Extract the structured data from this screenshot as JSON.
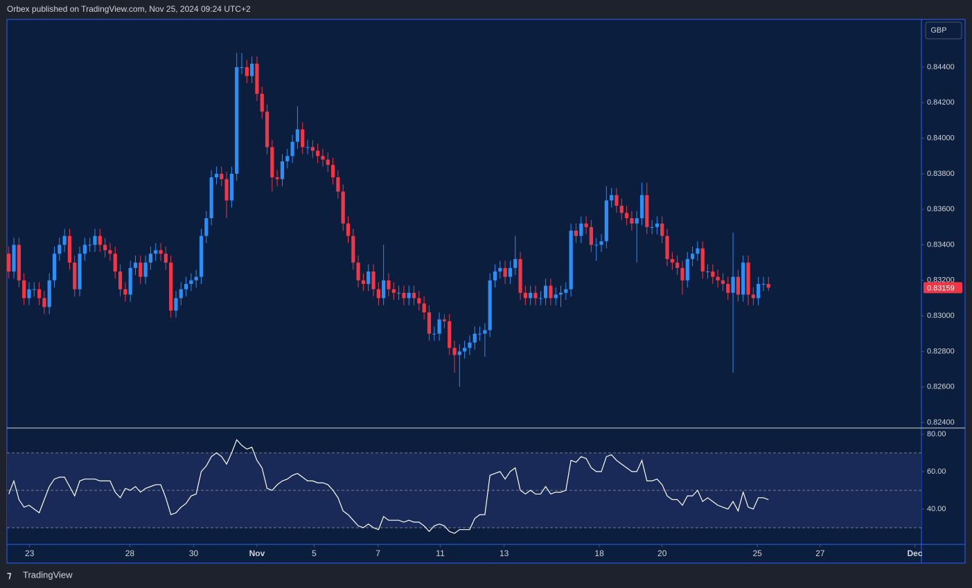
{
  "header": "Orbex published on TradingView.com, Nov 25, 2024 09:24 UTC+2",
  "currency": "GBP",
  "brand": "TradingView",
  "chart_data": [
    {
      "type": "candlestick",
      "up_color": "#2a8ff7",
      "down_color": "#f23645",
      "xlim": [
        -0.1,
        180.2
      ],
      "xticks": [
        {
          "value": 4.1,
          "label": "23"
        },
        {
          "value": 23.9,
          "label": "28"
        },
        {
          "value": 36.5,
          "label": "30"
        },
        {
          "value": 49,
          "label": "Nov"
        },
        {
          "value": 60.3,
          "label": "5"
        },
        {
          "value": 72.9,
          "label": "7"
        },
        {
          "value": 85.2,
          "label": "11"
        },
        {
          "value": 97.8,
          "label": "13"
        },
        {
          "value": 116.6,
          "label": "18"
        },
        {
          "value": 129,
          "label": "20"
        },
        {
          "value": 147.8,
          "label": "25"
        },
        {
          "value": 160.2,
          "label": "27"
        },
        {
          "value": 178.9,
          "label": "Dec"
        }
      ],
      "ylim": [
        0.82369,
        0.84669
      ],
      "yticks": [
        {
          "value": 0.824,
          "label": "0.82400"
        },
        {
          "value": 0.826,
          "label": "0.82600"
        },
        {
          "value": 0.828,
          "label": "0.82800"
        },
        {
          "value": 0.83,
          "label": "0.83000"
        },
        {
          "value": 0.832,
          "label": "0.83200"
        },
        {
          "value": 0.834,
          "label": "0.83400"
        },
        {
          "value": 0.836,
          "label": "0.83600"
        },
        {
          "value": 0.838,
          "label": "0.83800"
        },
        {
          "value": 0.84,
          "label": "0.84000"
        },
        {
          "value": 0.842,
          "label": "0.84200"
        },
        {
          "value": 0.844,
          "label": "0.84400"
        }
      ],
      "last_price": {
        "value": 0.83159,
        "label": "0.83159"
      },
      "open": [
        0.8335,
        0.8325,
        0.834,
        0.832,
        0.831,
        0.8315,
        0.8315,
        0.831,
        0.8305,
        0.832,
        0.8335,
        0.834,
        0.8345,
        0.833,
        0.8315,
        0.8335,
        0.834,
        0.834,
        0.8345,
        0.834,
        0.8337,
        0.8335,
        0.8325,
        0.8315,
        0.8312,
        0.8327,
        0.833,
        0.8322,
        0.833,
        0.8335,
        0.8337,
        0.8335,
        0.833,
        0.8303,
        0.831,
        0.8315,
        0.8318,
        0.832,
        0.8322,
        0.8345,
        0.8355,
        0.8378,
        0.838,
        0.8377,
        0.8365,
        0.838,
        0.844,
        0.844,
        0.8435,
        0.8442,
        0.8425,
        0.8415,
        0.8395,
        0.8378,
        0.8377,
        0.8387,
        0.839,
        0.8398,
        0.8405,
        0.8395,
        0.8395,
        0.8393,
        0.839,
        0.8388,
        0.8385,
        0.8378,
        0.837,
        0.8352,
        0.8345,
        0.833,
        0.832,
        0.8318,
        0.8325,
        0.8315,
        0.831,
        0.832,
        0.8315,
        0.8313,
        0.8313,
        0.831,
        0.8313,
        0.831,
        0.8307,
        0.8302,
        0.829,
        0.829,
        0.8298,
        0.8297,
        0.8282,
        0.8278,
        0.828,
        0.8282,
        0.8285,
        0.829,
        0.829,
        0.8292,
        0.832,
        0.8325,
        0.8327,
        0.8322,
        0.8327,
        0.8332,
        0.8313,
        0.831,
        0.8313,
        0.831,
        0.831,
        0.8317,
        0.831,
        0.8312,
        0.8313,
        0.8315,
        0.8348,
        0.8345,
        0.8352,
        0.835,
        0.834,
        0.834,
        0.8342,
        0.8365,
        0.8368,
        0.8362,
        0.8358,
        0.8355,
        0.8352,
        0.8355,
        0.8368,
        0.835,
        0.835,
        0.8352,
        0.8345,
        0.8332,
        0.833,
        0.8327,
        0.832,
        0.8332,
        0.8335,
        0.8338,
        0.8325,
        0.8325,
        0.8322,
        0.832,
        0.8318,
        0.8313,
        0.8322,
        0.8312,
        0.833,
        0.8312,
        0.831,
        0.8318,
        0.8318
      ],
      "high": [
        0.8339,
        0.8344,
        0.8344,
        0.8324,
        0.8319,
        0.8319,
        0.8319,
        0.8314,
        0.8324,
        0.8339,
        0.8344,
        0.8349,
        0.8349,
        0.8334,
        0.8339,
        0.8344,
        0.8344,
        0.8349,
        0.8349,
        0.8344,
        0.8341,
        0.8339,
        0.8329,
        0.8319,
        0.8331,
        0.8334,
        0.8334,
        0.8334,
        0.8339,
        0.8341,
        0.8341,
        0.8339,
        0.8334,
        0.8314,
        0.8319,
        0.8322,
        0.8324,
        0.8326,
        0.8349,
        0.8359,
        0.8382,
        0.8384,
        0.8384,
        0.8381,
        0.8384,
        0.8448,
        0.8448,
        0.8444,
        0.8446,
        0.8446,
        0.8429,
        0.8419,
        0.8399,
        0.8382,
        0.8391,
        0.8394,
        0.8402,
        0.8418,
        0.8409,
        0.8399,
        0.8399,
        0.8397,
        0.8394,
        0.8392,
        0.8389,
        0.8382,
        0.8374,
        0.8356,
        0.8349,
        0.8334,
        0.8324,
        0.8329,
        0.8329,
        0.8319,
        0.834,
        0.8324,
        0.8319,
        0.8317,
        0.8317,
        0.8317,
        0.8317,
        0.8314,
        0.8311,
        0.8306,
        0.8294,
        0.8302,
        0.8301,
        0.8301,
        0.8286,
        0.8284,
        0.8286,
        0.8289,
        0.8294,
        0.8294,
        0.8296,
        0.8324,
        0.8329,
        0.8331,
        0.8331,
        0.8331,
        0.8345,
        0.8336,
        0.8317,
        0.8317,
        0.8317,
        0.8314,
        0.8321,
        0.8321,
        0.8316,
        0.8317,
        0.8319,
        0.8352,
        0.8352,
        0.8356,
        0.8356,
        0.8354,
        0.8344,
        0.8346,
        0.8373,
        0.8372,
        0.8372,
        0.8366,
        0.8362,
        0.8359,
        0.8359,
        0.8375,
        0.8375,
        0.8354,
        0.8356,
        0.8356,
        0.8349,
        0.8336,
        0.8334,
        0.8331,
        0.8336,
        0.8339,
        0.8342,
        0.8342,
        0.8329,
        0.8329,
        0.8326,
        0.8324,
        0.8322,
        0.8347,
        0.8326,
        0.8334,
        0.8334,
        0.8316,
        0.8322,
        0.8322,
        0.8322
      ],
      "low": [
        0.8321,
        0.8321,
        0.8316,
        0.8306,
        0.8306,
        0.8311,
        0.8306,
        0.8301,
        0.8301,
        0.8316,
        0.8331,
        0.8336,
        0.8326,
        0.8311,
        0.8311,
        0.8331,
        0.8336,
        0.8336,
        0.8336,
        0.8333,
        0.8331,
        0.8321,
        0.8311,
        0.8308,
        0.8308,
        0.8323,
        0.8318,
        0.8318,
        0.8326,
        0.8331,
        0.8331,
        0.8326,
        0.8299,
        0.8299,
        0.8306,
        0.8311,
        0.8314,
        0.8316,
        0.8318,
        0.8341,
        0.8351,
        0.8374,
        0.8373,
        0.8355,
        0.8361,
        0.8376,
        0.8436,
        0.8431,
        0.8431,
        0.8421,
        0.8411,
        0.8391,
        0.837,
        0.8373,
        0.8373,
        0.8383,
        0.8386,
        0.8394,
        0.8391,
        0.8391,
        0.8389,
        0.8386,
        0.8384,
        0.8381,
        0.8374,
        0.8366,
        0.8348,
        0.8341,
        0.8326,
        0.8316,
        0.8314,
        0.8314,
        0.8311,
        0.8306,
        0.8306,
        0.8311,
        0.8309,
        0.8309,
        0.8306,
        0.8306,
        0.8306,
        0.8303,
        0.8298,
        0.8286,
        0.8286,
        0.8286,
        0.8293,
        0.8278,
        0.8268,
        0.826,
        0.8276,
        0.8278,
        0.8281,
        0.8286,
        0.8277,
        0.8288,
        0.8316,
        0.8321,
        0.8318,
        0.8318,
        0.8323,
        0.8309,
        0.8306,
        0.8306,
        0.8306,
        0.8306,
        0.8306,
        0.8306,
        0.8306,
        0.8305,
        0.8309,
        0.8311,
        0.8341,
        0.8341,
        0.8346,
        0.8336,
        0.8331,
        0.8336,
        0.8338,
        0.8361,
        0.8358,
        0.8354,
        0.8351,
        0.8348,
        0.833,
        0.8351,
        0.8346,
        0.8346,
        0.8346,
        0.8341,
        0.8328,
        0.8326,
        0.8323,
        0.8312,
        0.8316,
        0.8328,
        0.8331,
        0.8321,
        0.8321,
        0.8318,
        0.8316,
        0.8314,
        0.8309,
        0.8268,
        0.8308,
        0.8308,
        0.8306,
        0.8306,
        0.8306,
        0.8314,
        0.8314
      ],
      "close": [
        0.8325,
        0.834,
        0.832,
        0.831,
        0.8315,
        0.8315,
        0.831,
        0.8305,
        0.832,
        0.8335,
        0.834,
        0.8345,
        0.833,
        0.8315,
        0.8335,
        0.834,
        0.834,
        0.8345,
        0.834,
        0.8337,
        0.8335,
        0.8325,
        0.8315,
        0.8312,
        0.8327,
        0.833,
        0.8322,
        0.833,
        0.8335,
        0.8337,
        0.8335,
        0.833,
        0.8303,
        0.831,
        0.8315,
        0.8318,
        0.832,
        0.8322,
        0.8345,
        0.8355,
        0.8378,
        0.838,
        0.8377,
        0.8365,
        0.838,
        0.844,
        0.844,
        0.8435,
        0.8442,
        0.8425,
        0.8415,
        0.8395,
        0.8378,
        0.8377,
        0.8387,
        0.839,
        0.8398,
        0.8405,
        0.8395,
        0.8395,
        0.8393,
        0.839,
        0.8388,
        0.8385,
        0.8378,
        0.837,
        0.8352,
        0.8345,
        0.833,
        0.832,
        0.8318,
        0.8325,
        0.8315,
        0.831,
        0.832,
        0.8315,
        0.8313,
        0.8313,
        0.831,
        0.8313,
        0.831,
        0.8307,
        0.8302,
        0.829,
        0.829,
        0.8298,
        0.8297,
        0.8282,
        0.8278,
        0.828,
        0.8282,
        0.8285,
        0.829,
        0.829,
        0.8292,
        0.832,
        0.8325,
        0.8327,
        0.8322,
        0.8327,
        0.8332,
        0.8313,
        0.831,
        0.8313,
        0.831,
        0.831,
        0.8317,
        0.831,
        0.8312,
        0.8313,
        0.8315,
        0.8348,
        0.8345,
        0.8352,
        0.835,
        0.834,
        0.834,
        0.8342,
        0.8365,
        0.8368,
        0.8362,
        0.8358,
        0.8355,
        0.8352,
        0.8355,
        0.8368,
        0.835,
        0.835,
        0.8352,
        0.8345,
        0.8332,
        0.833,
        0.8327,
        0.832,
        0.8332,
        0.8335,
        0.8338,
        0.8325,
        0.8325,
        0.8322,
        0.832,
        0.8318,
        0.8313,
        0.8322,
        0.8312,
        0.833,
        0.8312,
        0.831,
        0.8318,
        0.8318,
        0.83159
      ]
    },
    {
      "type": "line",
      "color": "#ffffff",
      "ylim": [
        21.1,
        83.3
      ],
      "yticks": [
        {
          "value": 40,
          "label": "40.00"
        },
        {
          "value": 60,
          "label": "60.00"
        },
        {
          "value": 80,
          "label": "80.00"
        }
      ],
      "levels": [
        30,
        50,
        70
      ],
      "values": [
        48,
        55,
        45,
        41,
        42,
        40,
        38,
        45,
        52,
        56,
        57,
        57,
        52,
        47,
        55,
        56,
        56,
        56,
        55,
        55,
        55,
        49,
        46,
        51,
        50,
        52,
        49,
        51,
        52,
        53,
        53,
        46,
        37,
        38,
        41,
        43,
        47,
        48,
        60,
        63,
        68,
        70,
        68,
        64,
        70,
        77,
        74,
        72,
        73,
        66,
        62,
        51,
        50,
        53,
        55,
        56,
        58,
        59,
        57,
        55,
        55,
        54,
        54,
        53,
        50,
        46,
        39,
        37,
        34,
        31,
        30,
        32,
        30,
        29,
        36,
        34,
        34,
        34,
        33,
        34,
        33,
        33,
        31,
        28,
        31,
        32,
        31,
        28,
        27,
        29,
        29,
        29,
        35,
        37,
        37,
        58,
        59,
        60,
        56,
        60,
        62,
        50,
        48,
        50,
        48,
        48,
        52,
        48,
        49,
        49,
        50,
        66,
        65,
        68,
        67,
        62,
        60,
        60,
        68,
        69,
        66,
        64,
        62,
        60,
        60,
        66,
        55,
        55,
        56,
        53,
        47,
        45,
        45,
        42,
        47,
        47,
        50,
        44,
        46,
        44,
        42,
        41,
        40,
        44,
        39,
        49,
        41,
        40,
        46,
        46,
        45
      ]
    }
  ]
}
